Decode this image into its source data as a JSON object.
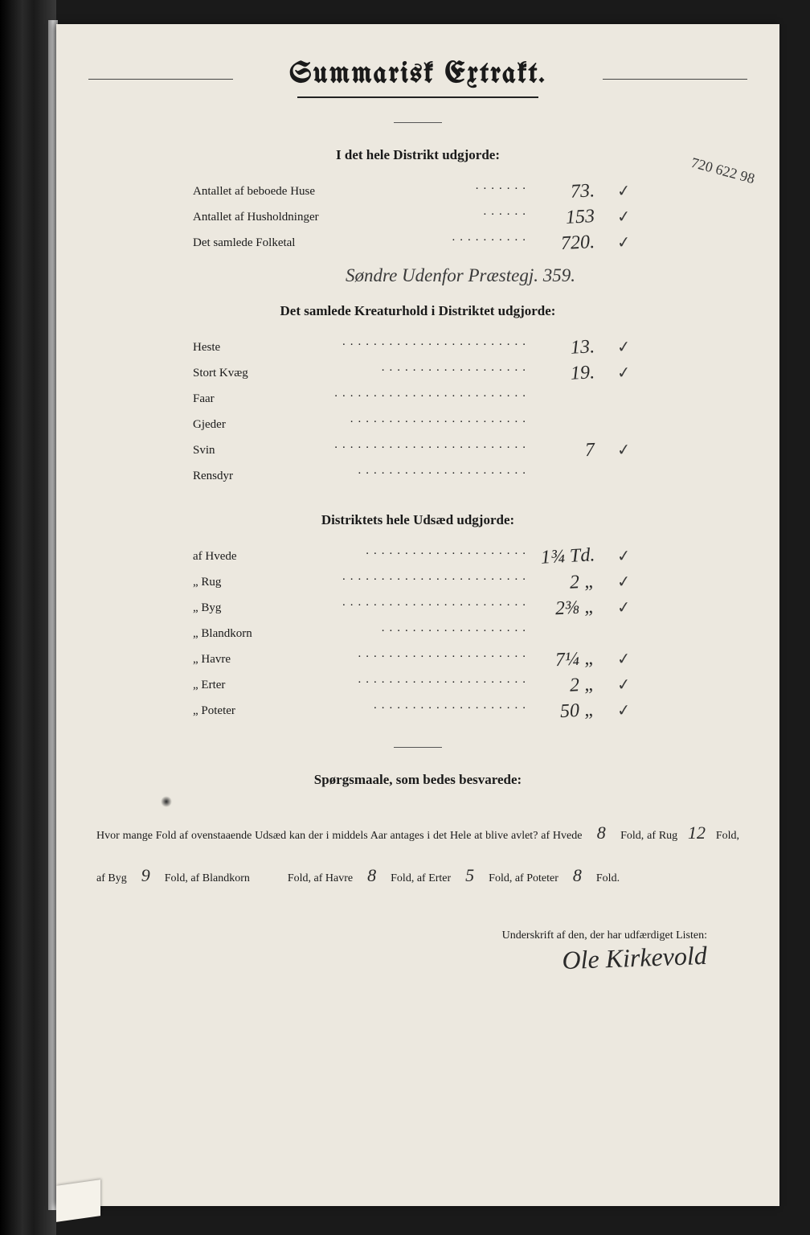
{
  "title": "Summarisk Extrakt.",
  "sections": {
    "district": {
      "heading": "I det hele Distrikt udgjorde:",
      "rows": [
        {
          "label": "Antallet af beboede Huse",
          "value": "73.",
          "check": "✓"
        },
        {
          "label": "Antallet af Husholdninger",
          "value": "153",
          "check": "✓"
        },
        {
          "label": "Det samlede Folketal",
          "value": "720.",
          "check": "✓"
        }
      ],
      "annotation": "Søndre Udenfor Præstegj. 359.",
      "margin_note": "720\n622\n98"
    },
    "livestock": {
      "heading": "Det samlede Kreaturhold i Distriktet udgjorde:",
      "rows": [
        {
          "label": "Heste",
          "value": "13.",
          "check": "✓"
        },
        {
          "label": "Stort Kvæg",
          "value": "19.",
          "check": "✓"
        },
        {
          "label": "Faar",
          "value": "",
          "check": ""
        },
        {
          "label": "Gjeder",
          "value": "",
          "check": ""
        },
        {
          "label": "Svin",
          "value": "7",
          "check": "✓"
        },
        {
          "label": "Rensdyr",
          "value": "",
          "check": ""
        }
      ]
    },
    "sowing": {
      "heading": "Distriktets hele Udsæd udgjorde:",
      "rows": [
        {
          "label": "af Hvede",
          "value": "1¾ Td.",
          "check": "✓"
        },
        {
          "label": "„ Rug",
          "value": "2  „",
          "check": "✓"
        },
        {
          "label": "„ Byg",
          "value": "2⅜ „",
          "check": "✓"
        },
        {
          "label": "„ Blandkorn",
          "value": "",
          "check": ""
        },
        {
          "label": "„ Havre",
          "value": "7¼ „",
          "check": "✓"
        },
        {
          "label": "„ Erter",
          "value": "2 „",
          "check": "✓"
        },
        {
          "label": "„ Poteter",
          "value": "50 „",
          "check": "✓"
        }
      ]
    }
  },
  "questions": {
    "heading": "Spørgsmaale, som bedes besvarede:",
    "text_parts": {
      "lead": "Hvor mange Fold af ovenstaaende Udsæd kan der i middels Aar antages i det Hele at blive avlet?  af Hvede",
      "hvede": "8",
      "t1": "Fold, af Rug",
      "rug": "12",
      "t2": "Fold, af Byg",
      "byg": "9",
      "t3": "Fold, af Blandkorn",
      "bland": " ",
      "t4": "Fold, af Havre",
      "havre": "8",
      "t5": "Fold, af Erter",
      "erter": "5",
      "t6": "Fold, af Poteter",
      "poteter": "8",
      "t7": "Fold."
    }
  },
  "signature": {
    "label": "Underskrift af den, der har udfærdiget Listen:",
    "name": "Ole Kirkevold"
  },
  "colors": {
    "page_bg": "#ece8df",
    "ink": "#1a1a1a",
    "hand_ink": "#2a2a2a",
    "scan_bg": "#1a1a1a"
  },
  "typography": {
    "title_pt": 36,
    "heading_pt": 17,
    "body_pt": 15,
    "hand_pt": 24,
    "signature_pt": 32
  }
}
